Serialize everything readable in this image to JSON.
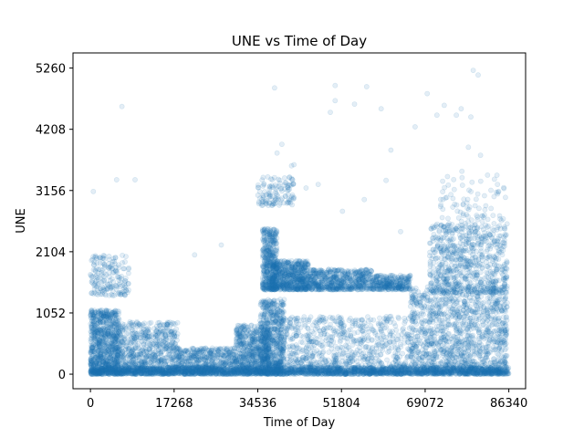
{
  "chart_data": {
    "type": "scatter",
    "title": "UNE vs Time of Day",
    "xlabel": "Time of Day",
    "ylabel": "UNE",
    "xlim": [
      -3600,
      89800
    ],
    "ylim": [
      -250,
      5520
    ],
    "x_ticks": [
      0,
      17268,
      34536,
      51804,
      69072,
      86340
    ],
    "x_tick_labels": [
      "0",
      "17268",
      "34536",
      "51804",
      "69072",
      "86340"
    ],
    "y_ticks": [
      0,
      1052,
      2104,
      3156,
      4208,
      5260
    ],
    "y_tick_labels": [
      "0",
      "1052",
      "2104",
      "3156",
      "4208",
      "5260"
    ],
    "grid": false,
    "point_color": "#1f77b4",
    "point_alpha": 0.12,
    "series": [
      {
        "clusters": [
          {
            "x": [
              0,
              86340
            ],
            "y": [
              0,
              120
            ],
            "count": 2200
          },
          {
            "x": [
              0,
              6000
            ],
            "y": [
              0,
              1100
            ],
            "count": 900
          },
          {
            "x": [
              0,
              8000
            ],
            "y": [
              1350,
              2050
            ],
            "count": 180
          },
          {
            "x": [
              6000,
              18000
            ],
            "y": [
              0,
              900
            ],
            "count": 700
          },
          {
            "x": [
              18000,
              30000
            ],
            "y": [
              0,
              450
            ],
            "count": 550
          },
          {
            "x": [
              30000,
              37000
            ],
            "y": [
              0,
              850
            ],
            "count": 600
          },
          {
            "x": [
              35000,
              40000
            ],
            "y": [
              0,
              1300
            ],
            "count": 600
          },
          {
            "x": [
              35500,
              38500
            ],
            "y": [
              1450,
              2500
            ],
            "count": 450
          },
          {
            "x": [
              37500,
              45000
            ],
            "y": [
              1450,
              1950
            ],
            "count": 650
          },
          {
            "x": [
              45000,
              58000
            ],
            "y": [
              1450,
              1800
            ],
            "count": 600
          },
          {
            "x": [
              58000,
              66000
            ],
            "y": [
              1450,
              1700
            ],
            "count": 300
          },
          {
            "x": [
              34500,
              42000
            ],
            "y": [
              2900,
              3400
            ],
            "count": 120
          },
          {
            "x": [
              38000,
              66000
            ],
            "y": [
              0,
              1000
            ],
            "count": 900
          },
          {
            "x": [
              66000,
              86000
            ],
            "y": [
              0,
              1500
            ],
            "count": 1300
          },
          {
            "x": [
              70000,
              86000
            ],
            "y": [
              1400,
              2600
            ],
            "count": 700
          },
          {
            "x": [
              72000,
              86000
            ],
            "y": [
              2600,
              3500
            ],
            "count": 80
          }
        ],
        "scattered_points": [
          [
            600,
            3140
          ],
          [
            6500,
            4600
          ],
          [
            5400,
            3340
          ],
          [
            9200,
            3340
          ],
          [
            21500,
            2050
          ],
          [
            27000,
            2220
          ],
          [
            38000,
            4920
          ],
          [
            38500,
            3800
          ],
          [
            39500,
            3950
          ],
          [
            42000,
            3600
          ],
          [
            44500,
            3200
          ],
          [
            49500,
            4500
          ],
          [
            50500,
            4960
          ],
          [
            50500,
            4700
          ],
          [
            54500,
            4640
          ],
          [
            57000,
            4940
          ],
          [
            60000,
            4560
          ],
          [
            62000,
            3850
          ],
          [
            67000,
            4250
          ],
          [
            69500,
            4820
          ],
          [
            71500,
            4450
          ],
          [
            73000,
            4620
          ],
          [
            75500,
            4450
          ],
          [
            76500,
            4560
          ],
          [
            78500,
            4420
          ],
          [
            79000,
            5220
          ],
          [
            80000,
            5140
          ],
          [
            78000,
            3900
          ],
          [
            80500,
            3760
          ],
          [
            84000,
            3260
          ],
          [
            41500,
            3580
          ],
          [
            47000,
            3260
          ],
          [
            52000,
            2800
          ],
          [
            56500,
            3000
          ],
          [
            61000,
            3330
          ],
          [
            64000,
            2450
          ]
        ]
      }
    ]
  }
}
